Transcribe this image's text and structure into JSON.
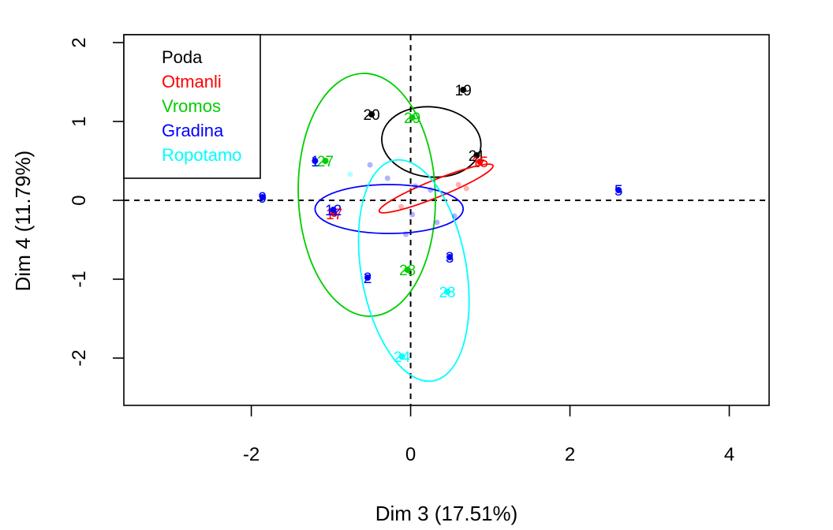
{
  "chart_data": {
    "type": "scatter",
    "title": "",
    "xlabel": "Dim 3 (17.51%)",
    "ylabel": "Dim 4 (11.79%)",
    "xlim": [
      -3.6,
      4.5
    ],
    "ylim": [
      -2.6,
      2.1
    ],
    "xticks": [
      -2,
      0,
      2,
      4
    ],
    "yticks": [
      -2,
      -1,
      0,
      1,
      2
    ],
    "xtick_labels": [
      "-2",
      "0",
      "2",
      "4"
    ],
    "ytick_labels": [
      "-2",
      "-1",
      "0",
      "1",
      "2"
    ],
    "reference_lines": {
      "x": 0,
      "y": 0,
      "style": "dashed"
    },
    "legend": {
      "position": "top-left",
      "entries": [
        {
          "name": "Poda",
          "color": "#000000"
        },
        {
          "name": "Otmanli",
          "color": "#ff0000"
        },
        {
          "name": "Vromos",
          "color": "#00cd00"
        },
        {
          "name": "Gradina",
          "color": "#0000ff"
        },
        {
          "name": "Ropotamo",
          "color": "#00ffff"
        }
      ]
    },
    "series": [
      {
        "name": "Poda",
        "color": "#000000",
        "points": [
          {
            "label": "19",
            "x": 0.66,
            "y": 1.4
          },
          {
            "label": "20",
            "x": -0.49,
            "y": 1.09
          },
          {
            "label": "21",
            "x": 0.83,
            "y": 0.57
          }
        ],
        "ellipse": {
          "cx": 0.26,
          "cy": 0.74,
          "rx": 0.44,
          "ry": 0.63,
          "angle_deg": 84
        }
      },
      {
        "name": "Otmanli",
        "color": "#ff0000",
        "points": [
          {
            "label": "15",
            "x": 0.87,
            "y": 0.49
          },
          {
            "label": "17",
            "x": -0.96,
            "y": -0.17
          }
        ],
        "ellipse": {
          "cx": 0.32,
          "cy": 0.15,
          "rx": 0.77,
          "ry": 0.11,
          "angle_deg": 22
        }
      },
      {
        "name": "Vromos",
        "color": "#00cd00",
        "points": [
          {
            "label": "29",
            "x": 0.02,
            "y": 1.05
          },
          {
            "label": "27",
            "x": -1.07,
            "y": 0.5
          },
          {
            "label": "28",
            "x": -0.04,
            "y": -0.88
          }
        ],
        "ellipse": {
          "cx": -0.55,
          "cy": 0.07,
          "rx": 0.86,
          "ry": 1.54,
          "angle_deg": 2
        }
      },
      {
        "name": "Gradina",
        "color": "#0000ff",
        "points": [
          {
            "label": "1",
            "x": -1.2,
            "y": 0.5
          },
          {
            "label": "9",
            "x": -1.86,
            "y": 0.04
          },
          {
            "label": "12",
            "x": -0.97,
            "y": -0.12
          },
          {
            "label": "5",
            "x": 2.61,
            "y": 0.13
          },
          {
            "label": "3",
            "x": 0.49,
            "y": -0.72
          },
          {
            "label": "2",
            "x": -0.54,
            "y": -0.98
          }
        ],
        "ellipse": {
          "cx": -0.27,
          "cy": -0.11,
          "rx": 0.93,
          "ry": 0.31,
          "angle_deg": 0
        }
      },
      {
        "name": "Ropotamo",
        "color": "#00ffff",
        "points": [
          {
            "label": "23",
            "x": 0.46,
            "y": -1.16
          },
          {
            "label": "24",
            "x": -0.11,
            "y": -1.98
          }
        ],
        "ellipse": {
          "cx": 0.04,
          "cy": -0.89,
          "rx": 0.66,
          "ry": 1.42,
          "angle_deg": 10
        }
      }
    ],
    "supplementary_points": [
      {
        "x": -0.51,
        "y": 0.45,
        "color": "#0000ff"
      },
      {
        "x": -0.76,
        "y": 0.33,
        "color": "#00ffff"
      },
      {
        "x": -0.29,
        "y": 0.28,
        "color": "#0000ff"
      },
      {
        "x": 0.06,
        "y": 0.18,
        "color": "#0000ff"
      },
      {
        "x": 0.25,
        "y": 0.13,
        "color": "#0000ff"
      },
      {
        "x": 0.6,
        "y": 0.2,
        "color": "#ff0000"
      },
      {
        "x": 0.7,
        "y": 0.15,
        "color": "#ff0000"
      },
      {
        "x": -0.12,
        "y": -0.08,
        "color": "#ff0000"
      },
      {
        "x": 0.02,
        "y": -0.18,
        "color": "#0000ff"
      },
      {
        "x": 0.55,
        "y": -0.2,
        "color": "#0000ff"
      },
      {
        "x": 0.33,
        "y": -0.28,
        "color": "#0000ff"
      },
      {
        "x": -0.06,
        "y": -0.43,
        "color": "#0000ff"
      }
    ]
  }
}
